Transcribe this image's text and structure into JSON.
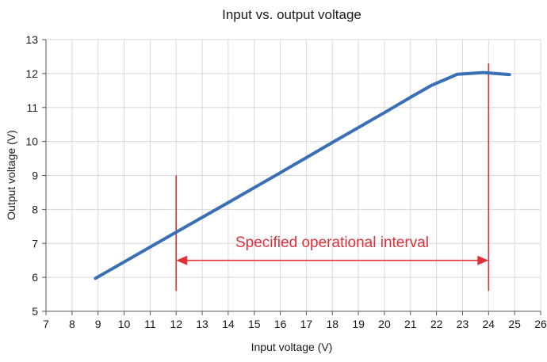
{
  "chart_data": {
    "type": "line",
    "title": "Input vs. output voltage",
    "xlabel": "Input voltage (V)",
    "ylabel": "Output voltage (V)",
    "xlim": [
      7,
      26
    ],
    "ylim": [
      5,
      13
    ],
    "x_ticks": [
      7,
      8,
      9,
      10,
      11,
      12,
      13,
      14,
      15,
      16,
      17,
      18,
      19,
      20,
      21,
      22,
      23,
      24,
      25,
      26
    ],
    "y_ticks": [
      5,
      6,
      7,
      8,
      9,
      10,
      11,
      12,
      13
    ],
    "grid": true,
    "series": [
      {
        "name": "Output voltage",
        "color": "#3a6eb5",
        "x": [
          8.9,
          12,
          14,
          16,
          18,
          20,
          21,
          21.8,
          22.8,
          23.8,
          24.8
        ],
        "y": [
          5.97,
          7.33,
          8.2,
          9.08,
          9.97,
          10.85,
          11.3,
          11.65,
          11.98,
          12.03,
          11.97
        ]
      }
    ],
    "annotations": {
      "text": "Specified operational interval",
      "color": "#e0303a",
      "interval": [
        12,
        24
      ],
      "arrow_y": 6.5,
      "marker_lines": [
        {
          "x": 12,
          "y_from": 5.6,
          "y_to": 9.0
        },
        {
          "x": 24,
          "y_from": 5.6,
          "y_to": 12.3
        }
      ]
    }
  }
}
